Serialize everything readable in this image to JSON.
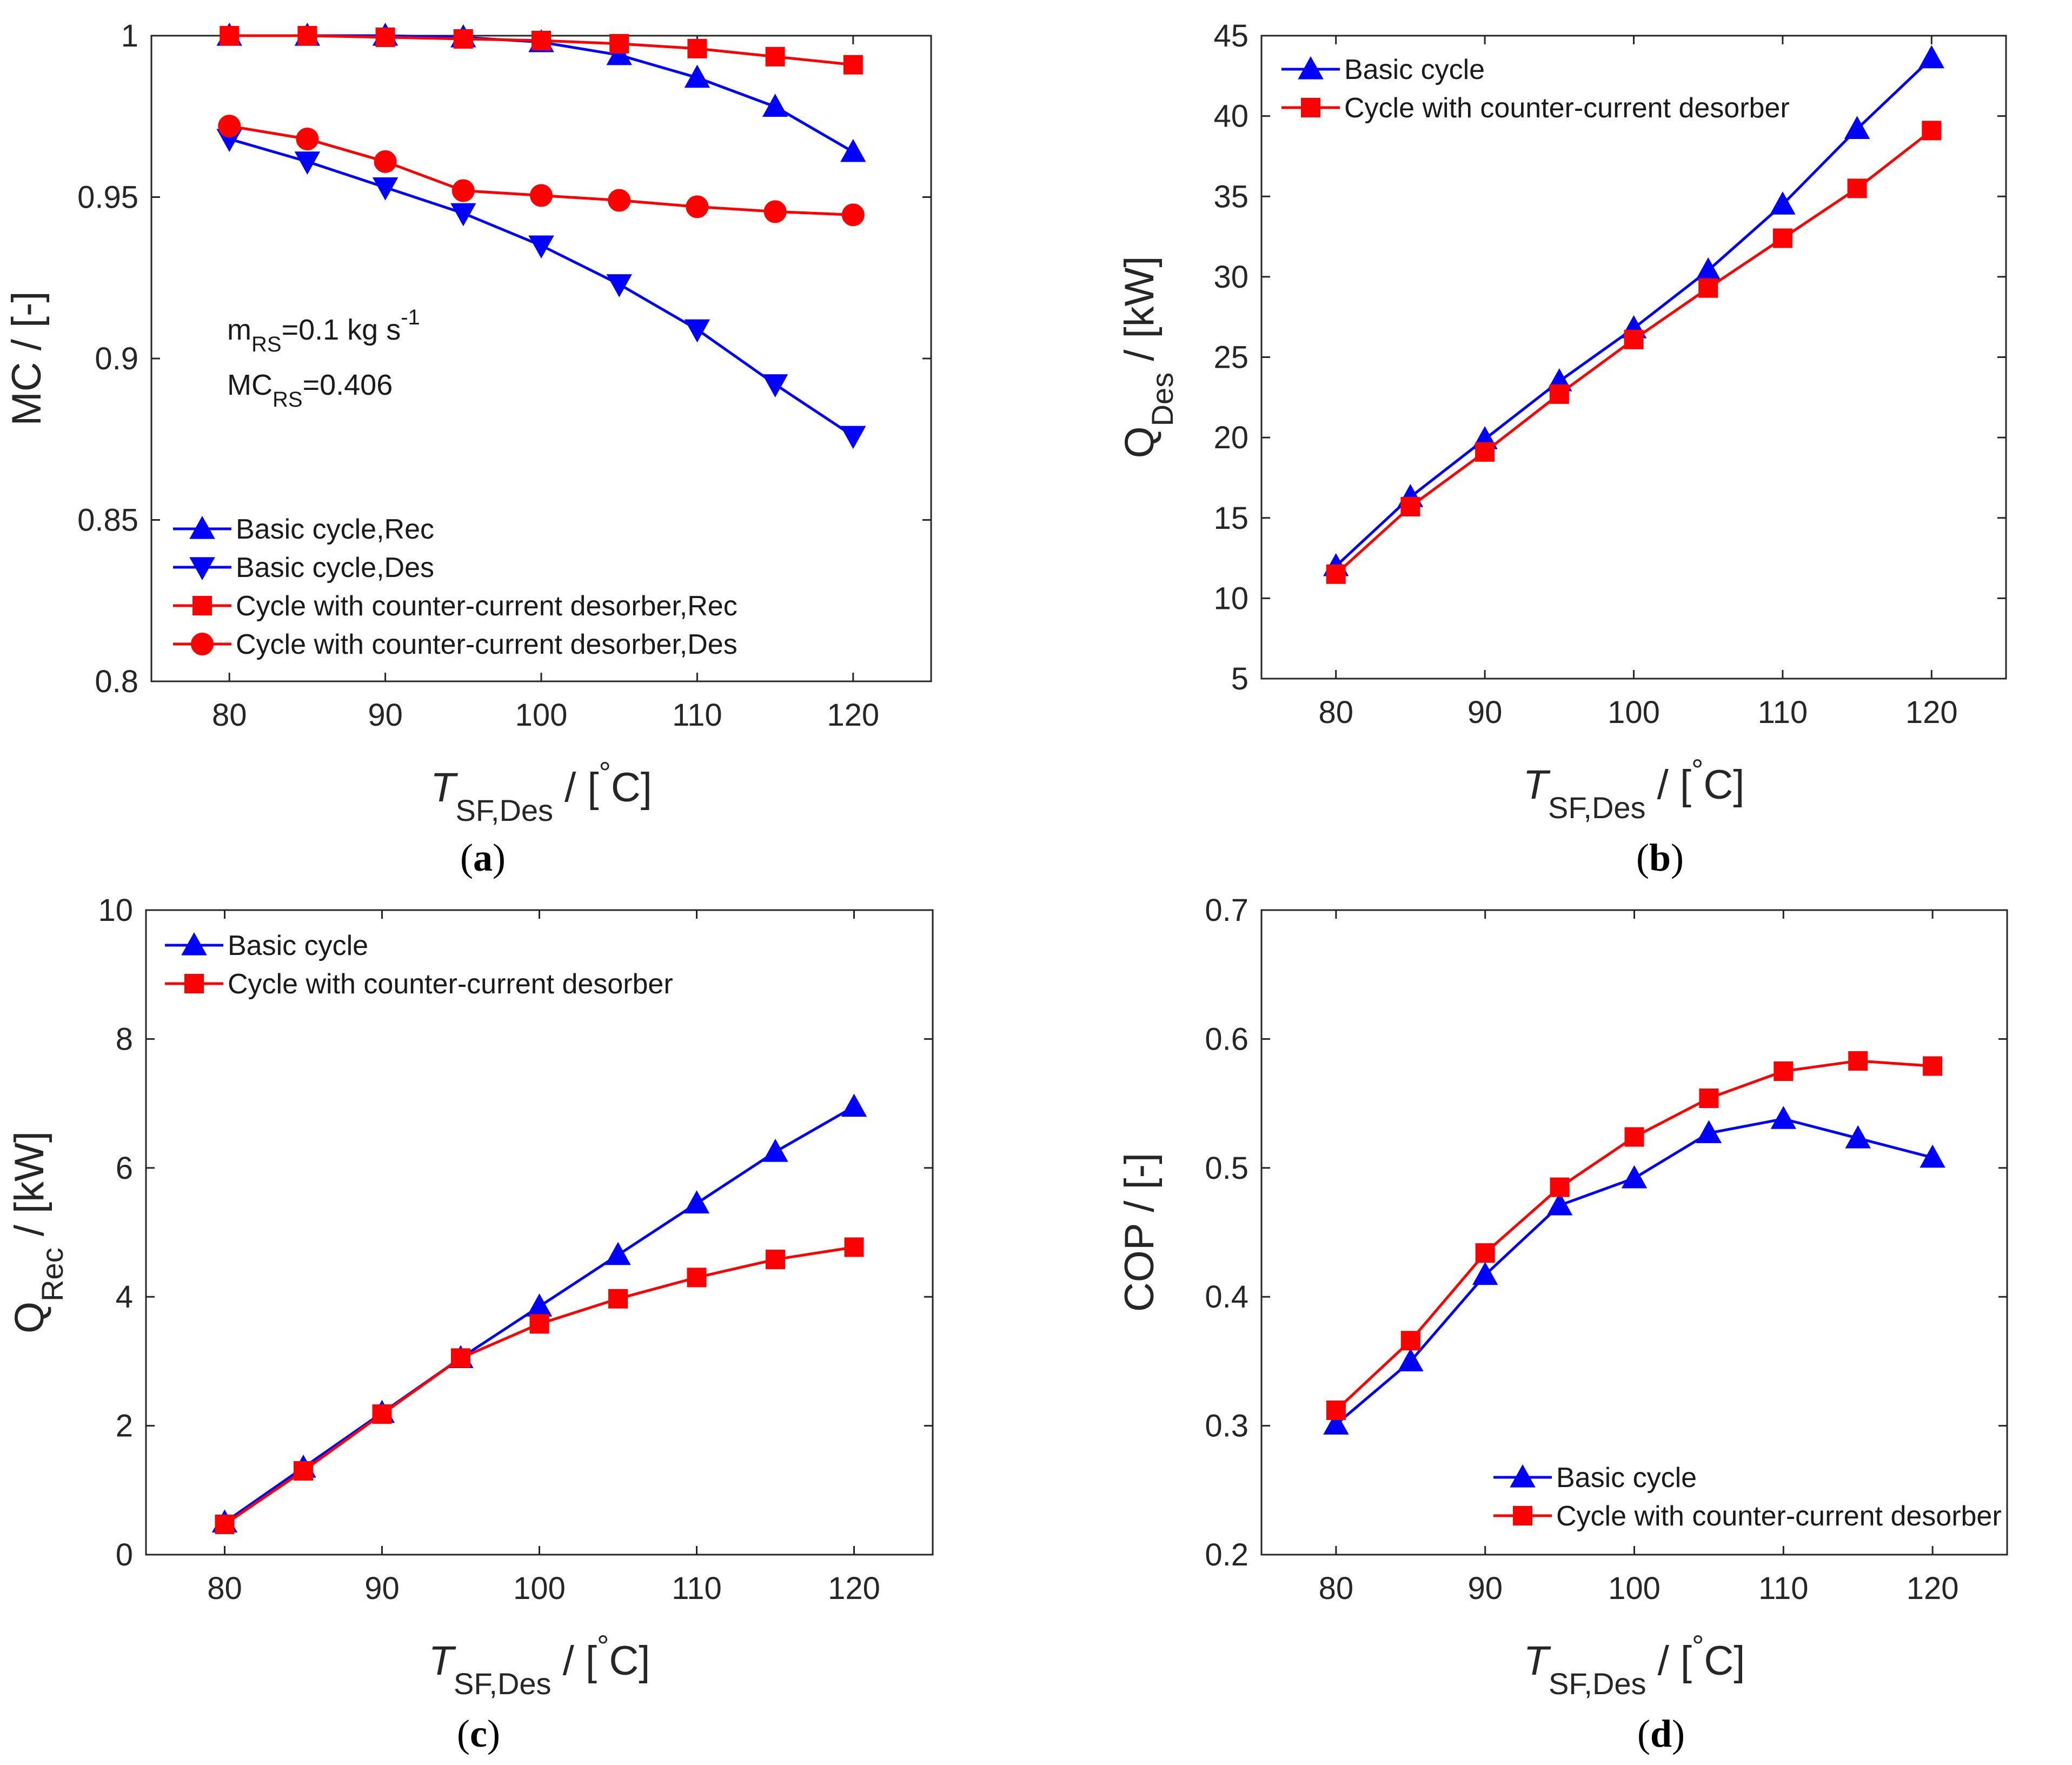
{
  "colors": {
    "blue": "#0000FF",
    "red": "#FF0000",
    "axis": "#262626"
  },
  "chart_data": [
    {
      "type": "line",
      "panel_label": "a",
      "xlabel_main": "T",
      "xlabel_sub": "SF,Des",
      "xlabel_unit": " / [",
      "xlabel_deg": "°",
      "xlabel_unit_end": "C]",
      "ylabel": "MC / [-]",
      "xlim": [
        75,
        125
      ],
      "ylim": [
        0.8,
        1.0
      ],
      "xticks": [
        80,
        90,
        100,
        110,
        120
      ],
      "yticks": [
        0.8,
        0.85,
        0.9,
        0.95,
        1
      ],
      "ytick_labels": [
        "0.8",
        "0.85",
        "0.9",
        "0.95",
        "1"
      ],
      "legend_position": "bottom-left",
      "annotation": {
        "line1_main": "m",
        "line1_sub": "RS",
        "line1_rest": "=0.1 kg s",
        "line1_sup": "-1",
        "line2_main": "MC",
        "line2_sub": "RS",
        "line2_rest": "=0.406"
      },
      "series": [
        {
          "name": "Basic cycle,Rec",
          "color": "blue",
          "marker": "triangle-up",
          "x": [
            80,
            85,
            90,
            95,
            100,
            105,
            110,
            115,
            120
          ],
          "values": [
            1.0,
            1.0,
            1.0,
            0.9995,
            0.998,
            0.994,
            0.987,
            0.978,
            0.964
          ]
        },
        {
          "name": "Basic cycle,Des",
          "color": "blue",
          "marker": "triangle-down",
          "x": [
            80,
            85,
            90,
            95,
            100,
            105,
            110,
            115,
            120
          ],
          "values": [
            0.968,
            0.961,
            0.953,
            0.945,
            0.935,
            0.923,
            0.909,
            0.892,
            0.876
          ]
        },
        {
          "name": "Cycle with counter-current desorber,Rec",
          "color": "red",
          "marker": "square",
          "x": [
            80,
            85,
            90,
            95,
            100,
            105,
            110,
            115,
            120
          ],
          "values": [
            1.0,
            1.0,
            0.9995,
            0.999,
            0.9985,
            0.9975,
            0.996,
            0.9935,
            0.991
          ]
        },
        {
          "name": "Cycle with counter-current desorber,Des",
          "color": "red",
          "marker": "circle",
          "x": [
            80,
            85,
            90,
            95,
            100,
            105,
            110,
            115,
            120
          ],
          "values": [
            0.972,
            0.968,
            0.961,
            0.952,
            0.9505,
            0.949,
            0.947,
            0.9455,
            0.9445
          ]
        }
      ]
    },
    {
      "type": "line",
      "panel_label": "b",
      "xlabel_main": "T",
      "xlabel_sub": "SF,Des",
      "xlabel_unit": " / [",
      "xlabel_deg": "°",
      "xlabel_unit_end": "C]",
      "ylabel_main": "Q",
      "ylabel_sub": "Des",
      "ylabel_unit": " / [kW]",
      "xlim": [
        75,
        125
      ],
      "ylim": [
        5,
        45
      ],
      "xticks": [
        80,
        90,
        100,
        110,
        120
      ],
      "yticks": [
        5,
        10,
        15,
        20,
        25,
        30,
        35,
        40,
        45
      ],
      "ytick_labels": [
        "5",
        "10",
        "15",
        "20",
        "25",
        "30",
        "35",
        "40",
        "45"
      ],
      "legend_position": "top-left",
      "series": [
        {
          "name": "Basic cycle",
          "color": "blue",
          "marker": "triangle-up",
          "x": [
            80,
            85,
            90,
            95,
            100,
            105,
            110,
            115,
            120
          ],
          "values": [
            12.0,
            16.3,
            19.9,
            23.5,
            26.8,
            30.4,
            34.5,
            39.2,
            43.6
          ]
        },
        {
          "name": "Cycle with counter-current desorber",
          "color": "red",
          "marker": "square",
          "x": [
            80,
            85,
            90,
            95,
            100,
            105,
            110,
            115,
            120
          ],
          "values": [
            11.5,
            15.7,
            19.1,
            22.7,
            26.1,
            29.3,
            32.4,
            35.5,
            39.1
          ]
        }
      ]
    },
    {
      "type": "line",
      "panel_label": "c",
      "xlabel_main": "T",
      "xlabel_sub": "SF,Des",
      "xlabel_unit": " / [",
      "xlabel_deg": "°",
      "xlabel_unit_end": "C]",
      "ylabel_main": "Q",
      "ylabel_sub": "Rec",
      "ylabel_unit": " / [kW]",
      "xlim": [
        75,
        125
      ],
      "ylim": [
        0,
        10
      ],
      "xticks": [
        80,
        90,
        100,
        110,
        120
      ],
      "yticks": [
        0,
        2,
        4,
        6,
        8,
        10
      ],
      "ytick_labels": [
        "0",
        "2",
        "4",
        "6",
        "8",
        "10"
      ],
      "legend_position": "top-left",
      "series": [
        {
          "name": "Basic cycle",
          "color": "blue",
          "marker": "triangle-up",
          "x": [
            80,
            85,
            90,
            95,
            100,
            105,
            110,
            115,
            120
          ],
          "values": [
            0.5,
            1.35,
            2.2,
            3.05,
            3.85,
            4.65,
            5.45,
            6.25,
            6.95
          ]
        },
        {
          "name": "Cycle with counter-current desorber",
          "color": "red",
          "marker": "square",
          "x": [
            80,
            85,
            90,
            95,
            100,
            105,
            110,
            115,
            120
          ],
          "values": [
            0.47,
            1.3,
            2.18,
            3.05,
            3.58,
            3.97,
            4.3,
            4.58,
            4.77
          ]
        }
      ]
    },
    {
      "type": "line",
      "panel_label": "d",
      "xlabel_main": "T",
      "xlabel_sub": "SF,Des",
      "xlabel_unit": " / [",
      "xlabel_deg": "°",
      "xlabel_unit_end": "C]",
      "ylabel": "COP / [-]",
      "xlim": [
        75,
        125
      ],
      "ylim": [
        0.2,
        0.7
      ],
      "xticks": [
        80,
        90,
        100,
        110,
        120
      ],
      "yticks": [
        0.2,
        0.3,
        0.4,
        0.5,
        0.6,
        0.7
      ],
      "ytick_labels": [
        "0.2",
        "0.3",
        "0.4",
        "0.5",
        "0.6",
        "0.7"
      ],
      "legend_position": "bottom-right",
      "series": [
        {
          "name": "Basic cycle",
          "color": "blue",
          "marker": "triangle-up",
          "x": [
            80,
            85,
            90,
            95,
            100,
            105,
            110,
            115,
            120
          ],
          "values": [
            0.301,
            0.35,
            0.417,
            0.471,
            0.492,
            0.527,
            0.538,
            0.523,
            0.508
          ]
        },
        {
          "name": "Cycle with counter-current desorber",
          "color": "red",
          "marker": "square",
          "x": [
            80,
            85,
            90,
            95,
            100,
            105,
            110,
            115,
            120
          ],
          "values": [
            0.312,
            0.366,
            0.434,
            0.485,
            0.524,
            0.554,
            0.575,
            0.583,
            0.579
          ]
        }
      ]
    }
  ]
}
